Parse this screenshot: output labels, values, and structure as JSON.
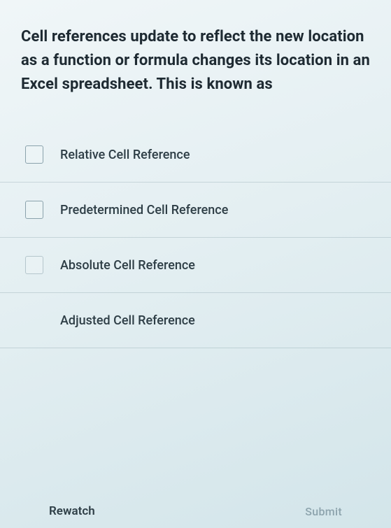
{
  "question": {
    "text": "Cell references update to reflect the new location as a function or formula changes its location in an Excel spreadsheet. This is known as"
  },
  "options": [
    {
      "label": "Relative Cell Reference",
      "checkbox_style": "normal"
    },
    {
      "label": "Predetermined Cell Reference",
      "checkbox_style": "normal"
    },
    {
      "label": "Absolute Cell Reference",
      "checkbox_style": "faded"
    },
    {
      "label": "Adjusted Cell Reference",
      "checkbox_style": "missing"
    }
  ],
  "footer": {
    "rewatch_label": "Rewatch",
    "submit_label": "Submit"
  },
  "colors": {
    "bg_top": "#f0f6f8",
    "bg_mid": "#e4eff2",
    "bg_bottom": "#d3e5ea",
    "text_primary": "#1e2a32",
    "text_secondary": "#2e3e46",
    "checkbox_border": "#8aa2ac",
    "divider": "rgba(100,130,140,0.25)",
    "submit_disabled": "#6f8893"
  }
}
